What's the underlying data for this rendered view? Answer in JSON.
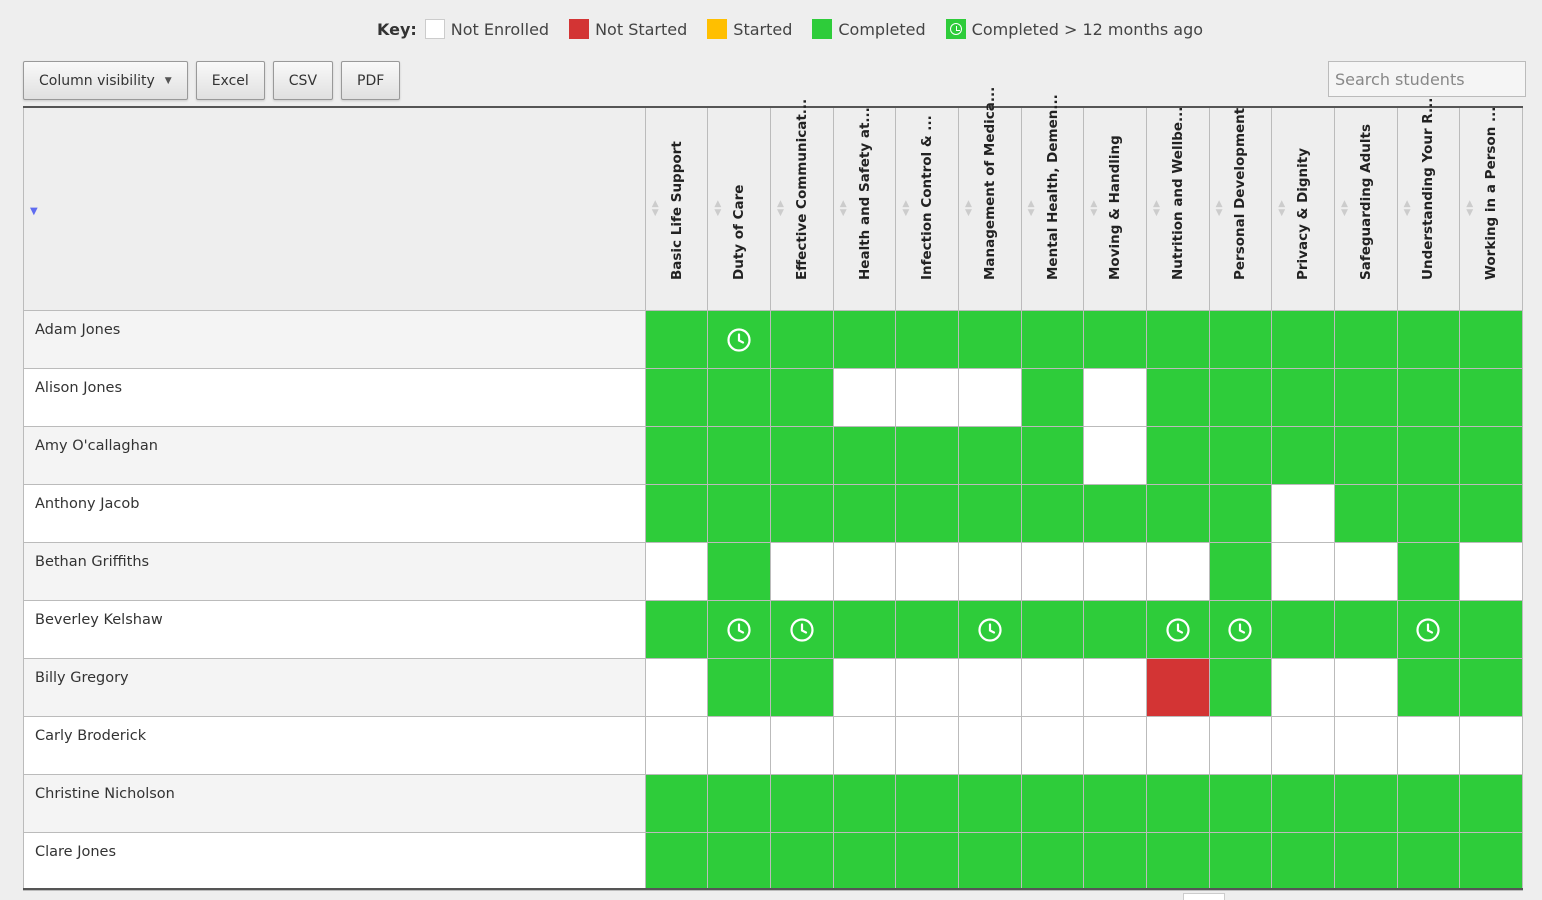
{
  "key": {
    "title": "Key:",
    "items": [
      {
        "label": "Not Enrolled",
        "status": "not-enrolled",
        "color": "#ffffff"
      },
      {
        "label": "Not Started",
        "status": "not-started",
        "color": "#d33434"
      },
      {
        "label": "Started",
        "status": "started",
        "color": "#ffbf00"
      },
      {
        "label": "Completed",
        "status": "completed",
        "color": "#2ecc3a"
      },
      {
        "label": "Completed > 12 months ago",
        "status": "completed-old",
        "color": "#2ecc3a",
        "icon": "clock-icon"
      }
    ]
  },
  "toolbar": {
    "column_visibility_label": "Column visibility",
    "excel_label": "Excel",
    "csv_label": "CSV",
    "pdf_label": "PDF"
  },
  "search": {
    "placeholder": "Search students",
    "value": ""
  },
  "table": {
    "columns": [
      "Basic Life Support",
      "Duty of Care",
      "Effective Communicat...",
      "Health and Safety at...",
      "Infection Control & ...",
      "Management of Medica...",
      "Mental Health, Demen...",
      "Moving & Handling",
      "Nutrition and Wellbe...",
      "Personal Development",
      "Privacy & Dignity",
      "Safeguarding Adults",
      "Understanding Your R...",
      "Working in a Person ..."
    ],
    "status_codes": {
      "N": "not-enrolled",
      "X": "not-started",
      "S": "started",
      "C": "completed",
      "O": "completed-old"
    },
    "rows": [
      {
        "name": "Adam Jones",
        "cells": [
          "C",
          "O",
          "C",
          "C",
          "C",
          "C",
          "C",
          "C",
          "C",
          "C",
          "C",
          "C",
          "C",
          "C"
        ]
      },
      {
        "name": "Alison Jones",
        "cells": [
          "C",
          "C",
          "C",
          "N",
          "N",
          "N",
          "C",
          "N",
          "C",
          "C",
          "C",
          "C",
          "C",
          "C"
        ]
      },
      {
        "name": "Amy O'callaghan",
        "cells": [
          "C",
          "C",
          "C",
          "C",
          "C",
          "C",
          "C",
          "N",
          "C",
          "C",
          "C",
          "C",
          "C",
          "C"
        ]
      },
      {
        "name": "Anthony Jacob",
        "cells": [
          "C",
          "C",
          "C",
          "C",
          "C",
          "C",
          "C",
          "C",
          "C",
          "C",
          "N",
          "C",
          "C",
          "C"
        ]
      },
      {
        "name": "Bethan Griffiths",
        "cells": [
          "N",
          "C",
          "N",
          "N",
          "N",
          "N",
          "N",
          "N",
          "N",
          "C",
          "N",
          "N",
          "C",
          "N"
        ]
      },
      {
        "name": "Beverley Kelshaw",
        "cells": [
          "C",
          "O",
          "O",
          "C",
          "C",
          "O",
          "C",
          "C",
          "O",
          "O",
          "C",
          "C",
          "O",
          "C"
        ]
      },
      {
        "name": "Billy Gregory",
        "cells": [
          "N",
          "C",
          "C",
          "N",
          "N",
          "N",
          "N",
          "N",
          "X",
          "C",
          "N",
          "N",
          "C",
          "C"
        ]
      },
      {
        "name": "Carly Broderick",
        "cells": [
          "N",
          "N",
          "N",
          "N",
          "N",
          "N",
          "N",
          "N",
          "N",
          "N",
          "N",
          "N",
          "N",
          "N"
        ]
      },
      {
        "name": "Christine Nicholson",
        "cells": [
          "C",
          "C",
          "C",
          "C",
          "C",
          "C",
          "C",
          "C",
          "C",
          "C",
          "C",
          "C",
          "C",
          "C"
        ]
      },
      {
        "name": "Clare Jones",
        "cells": [
          "C",
          "C",
          "C",
          "C",
          "C",
          "C",
          "C",
          "C",
          "C",
          "C",
          "C",
          "C",
          "C",
          "C"
        ]
      }
    ]
  }
}
